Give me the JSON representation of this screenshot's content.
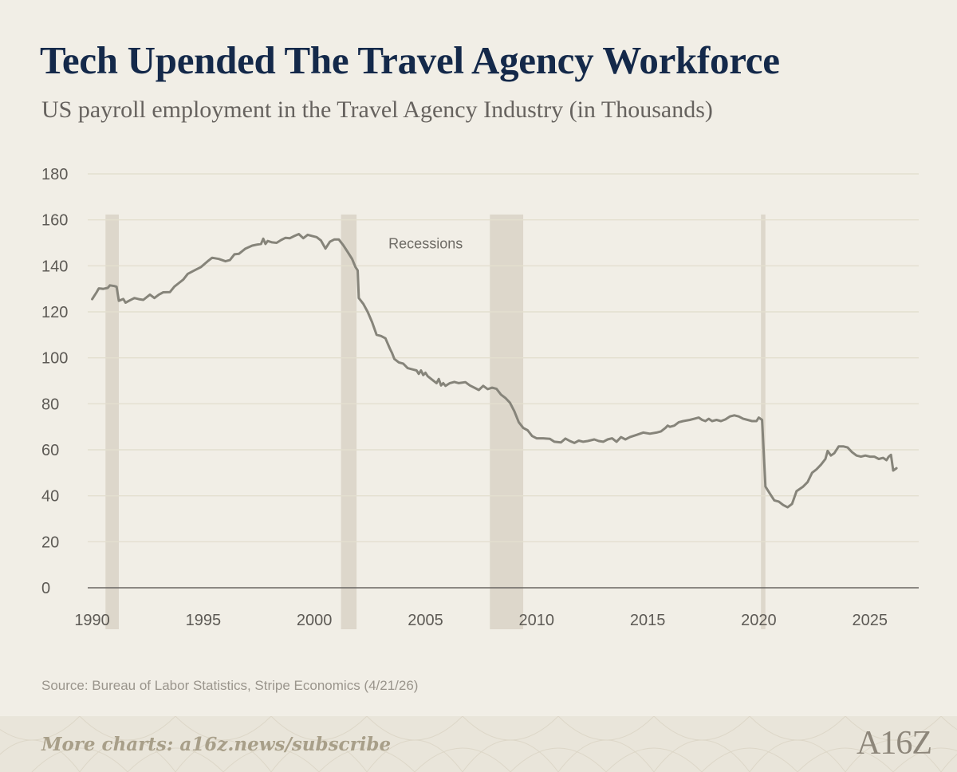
{
  "chart_data": {
    "type": "line",
    "title": "Tech Upended The Travel Agency Workforce",
    "subtitle": "US payroll employment in the Travel Agency Industry (in Thousands)",
    "xlabel": "",
    "ylabel": "",
    "xlim": [
      1989.8,
      2027.2
    ],
    "ylim": [
      0,
      180
    ],
    "x_ticks": [
      1990,
      1995,
      2000,
      2005,
      2010,
      2015,
      2020,
      2025
    ],
    "y_ticks": [
      0,
      20,
      40,
      60,
      80,
      100,
      120,
      140,
      160,
      180
    ],
    "grid": true,
    "colors": {
      "line": "#86847a",
      "recession": "#ddd7cb",
      "grid": "#e3dfcf",
      "axis": "#6a6762",
      "tick_label": "#5d5a55"
    },
    "recession_label": "Recessions",
    "recessions": [
      {
        "start": 1990.6,
        "end": 1991.2
      },
      {
        "start": 2001.2,
        "end": 2001.9
      },
      {
        "start": 2007.9,
        "end": 2009.4
      },
      {
        "start": 2020.1,
        "end": 2020.3
      }
    ],
    "series": [
      {
        "values": [
          [
            1990.0,
            125.5
          ],
          [
            1990.2,
            128.5
          ],
          [
            1990.3,
            130.2
          ],
          [
            1990.5,
            130.0
          ],
          [
            1990.7,
            130.4
          ],
          [
            1990.8,
            131.5
          ],
          [
            1991.0,
            131.2
          ],
          [
            1991.1,
            130.9
          ],
          [
            1991.2,
            124.8
          ],
          [
            1991.4,
            125.6
          ],
          [
            1991.5,
            124.0
          ],
          [
            1991.7,
            125.0
          ],
          [
            1991.9,
            126.0
          ],
          [
            1992.1,
            125.5
          ],
          [
            1992.3,
            125.2
          ],
          [
            1992.6,
            127.5
          ],
          [
            1992.8,
            126.0
          ],
          [
            1993.0,
            127.5
          ],
          [
            1993.2,
            128.5
          ],
          [
            1993.5,
            128.6
          ],
          [
            1993.7,
            131.0
          ],
          [
            1993.9,
            132.5
          ],
          [
            1994.1,
            134.0
          ],
          [
            1994.3,
            136.5
          ],
          [
            1994.6,
            138.0
          ],
          [
            1994.9,
            139.5
          ],
          [
            1995.2,
            142.0
          ],
          [
            1995.4,
            143.5
          ],
          [
            1995.7,
            143.0
          ],
          [
            1996.0,
            142.0
          ],
          [
            1996.2,
            142.5
          ],
          [
            1996.4,
            145.0
          ],
          [
            1996.6,
            145.2
          ],
          [
            1996.9,
            147.5
          ],
          [
            1997.2,
            148.8
          ],
          [
            1997.4,
            149.2
          ],
          [
            1997.6,
            149.5
          ],
          [
            1997.7,
            151.8
          ],
          [
            1997.8,
            149.5
          ],
          [
            1997.9,
            150.8
          ],
          [
            1998.1,
            150.2
          ],
          [
            1998.3,
            150.0
          ],
          [
            1998.5,
            151.2
          ],
          [
            1998.7,
            152.2
          ],
          [
            1998.9,
            152.0
          ],
          [
            1999.1,
            153.0
          ],
          [
            1999.3,
            153.8
          ],
          [
            1999.5,
            152.0
          ],
          [
            1999.7,
            153.5
          ],
          [
            1999.9,
            153.0
          ],
          [
            2000.1,
            152.5
          ],
          [
            2000.3,
            151.0
          ],
          [
            2000.5,
            147.5
          ],
          [
            2000.7,
            150.5
          ],
          [
            2000.9,
            151.5
          ],
          [
            2001.1,
            151.5
          ],
          [
            2001.3,
            149.0
          ],
          [
            2001.5,
            146.0
          ],
          [
            2001.7,
            143.0
          ],
          [
            2001.85,
            139.5
          ],
          [
            2001.95,
            138.0
          ],
          [
            2002.0,
            126.0
          ],
          [
            2002.2,
            123.5
          ],
          [
            2002.4,
            120.0
          ],
          [
            2002.6,
            115.5
          ],
          [
            2002.8,
            110.0
          ],
          [
            2003.0,
            109.5
          ],
          [
            2003.2,
            108.5
          ],
          [
            2003.4,
            104.0
          ],
          [
            2003.5,
            102.0
          ],
          [
            2003.6,
            99.5
          ],
          [
            2003.8,
            98.0
          ],
          [
            2004.0,
            97.5
          ],
          [
            2004.2,
            95.5
          ],
          [
            2004.4,
            95.0
          ],
          [
            2004.6,
            94.5
          ],
          [
            2004.7,
            93.0
          ],
          [
            2004.8,
            94.5
          ],
          [
            2004.9,
            92.5
          ],
          [
            2005.0,
            93.5
          ],
          [
            2005.1,
            92.0
          ],
          [
            2005.3,
            90.5
          ],
          [
            2005.5,
            89.0
          ],
          [
            2005.6,
            90.8
          ],
          [
            2005.7,
            88.0
          ],
          [
            2005.8,
            89.0
          ],
          [
            2005.9,
            87.8
          ],
          [
            2006.1,
            89.0
          ],
          [
            2006.3,
            89.5
          ],
          [
            2006.5,
            89.0
          ],
          [
            2006.8,
            89.4
          ],
          [
            2007.0,
            88.0
          ],
          [
            2007.2,
            87.0
          ],
          [
            2007.4,
            86.0
          ],
          [
            2007.6,
            87.8
          ],
          [
            2007.8,
            86.4
          ],
          [
            2008.0,
            87.0
          ],
          [
            2008.2,
            86.5
          ],
          [
            2008.4,
            84.0
          ],
          [
            2008.6,
            82.5
          ],
          [
            2008.8,
            80.5
          ],
          [
            2009.0,
            76.8
          ],
          [
            2009.2,
            72.0
          ],
          [
            2009.4,
            69.5
          ],
          [
            2009.6,
            68.5
          ],
          [
            2009.8,
            66.0
          ],
          [
            2010.0,
            65.0
          ],
          [
            2010.3,
            65.0
          ],
          [
            2010.6,
            64.8
          ],
          [
            2010.8,
            63.5
          ],
          [
            2011.1,
            63.2
          ],
          [
            2011.3,
            64.9
          ],
          [
            2011.5,
            63.8
          ],
          [
            2011.7,
            63.0
          ],
          [
            2011.9,
            64.0
          ],
          [
            2012.1,
            63.5
          ],
          [
            2012.3,
            63.8
          ],
          [
            2012.6,
            64.5
          ],
          [
            2012.8,
            63.8
          ],
          [
            2013.0,
            63.5
          ],
          [
            2013.2,
            64.5
          ],
          [
            2013.4,
            65.0
          ],
          [
            2013.6,
            63.5
          ],
          [
            2013.8,
            65.5
          ],
          [
            2014.0,
            64.5
          ],
          [
            2014.2,
            65.5
          ],
          [
            2014.5,
            66.5
          ],
          [
            2014.8,
            67.5
          ],
          [
            2015.1,
            67.0
          ],
          [
            2015.4,
            67.5
          ],
          [
            2015.6,
            68.0
          ],
          [
            2015.8,
            69.5
          ],
          [
            2015.9,
            70.5
          ],
          [
            2016.0,
            70.0
          ],
          [
            2016.2,
            70.5
          ],
          [
            2016.4,
            72.0
          ],
          [
            2016.6,
            72.5
          ],
          [
            2016.9,
            73.0
          ],
          [
            2017.1,
            73.5
          ],
          [
            2017.3,
            74.0
          ],
          [
            2017.45,
            73.0
          ],
          [
            2017.6,
            72.5
          ],
          [
            2017.75,
            73.5
          ],
          [
            2017.9,
            72.5
          ],
          [
            2018.1,
            73.0
          ],
          [
            2018.3,
            72.5
          ],
          [
            2018.5,
            73.2
          ],
          [
            2018.7,
            74.5
          ],
          [
            2018.9,
            75.0
          ],
          [
            2019.1,
            74.5
          ],
          [
            2019.3,
            73.5
          ],
          [
            2019.5,
            73.0
          ],
          [
            2019.7,
            72.5
          ],
          [
            2019.9,
            72.5
          ],
          [
            2020.0,
            74.0
          ],
          [
            2020.15,
            73.0
          ],
          [
            2020.3,
            44.0
          ],
          [
            2020.5,
            41.0
          ],
          [
            2020.7,
            38.0
          ],
          [
            2020.9,
            37.5
          ],
          [
            2021.1,
            36.0
          ],
          [
            2021.3,
            35.0
          ],
          [
            2021.5,
            36.5
          ],
          [
            2021.7,
            42.0
          ],
          [
            2022.0,
            44.0
          ],
          [
            2022.2,
            46.0
          ],
          [
            2022.4,
            50.0
          ],
          [
            2022.6,
            51.5
          ],
          [
            2022.8,
            53.5
          ],
          [
            2023.0,
            56.0
          ],
          [
            2023.1,
            59.5
          ],
          [
            2023.25,
            57.5
          ],
          [
            2023.4,
            58.5
          ],
          [
            2023.6,
            61.5
          ],
          [
            2023.8,
            61.5
          ],
          [
            2024.0,
            61.0
          ],
          [
            2024.2,
            59.0
          ],
          [
            2024.4,
            57.5
          ],
          [
            2024.6,
            57.0
          ],
          [
            2024.8,
            57.5
          ],
          [
            2025.0,
            57.0
          ],
          [
            2025.2,
            57.0
          ],
          [
            2025.4,
            56.0
          ],
          [
            2025.6,
            56.5
          ],
          [
            2025.75,
            55.5
          ],
          [
            2025.85,
            57.0
          ],
          [
            2025.95,
            57.8
          ],
          [
            2026.05,
            51.0
          ],
          [
            2026.2,
            52.0
          ]
        ]
      }
    ]
  },
  "source_text": "Source: Bureau of Labor Statistics, Stripe Economics (4/21/26)",
  "footer": {
    "cta_text": "More charts: a16z.news/subscribe",
    "logo_text": "A16Z"
  }
}
